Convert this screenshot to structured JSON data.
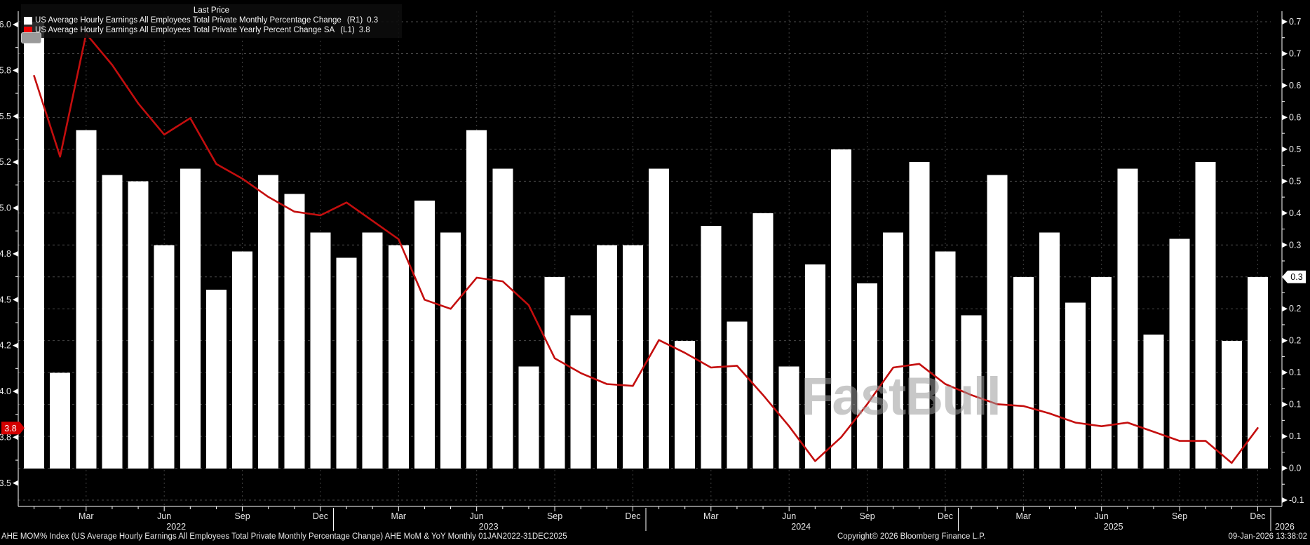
{
  "legend": {
    "title": "Last Price",
    "series": [
      {
        "swatch": "#ffffff",
        "label": "US Average Hourly Earnings All Employees Total Private Monthly Percentage Change",
        "axis_tag": "(R1)",
        "value": "0.3"
      },
      {
        "swatch": "#ee0000",
        "label": "US Average Hourly Earnings All Employees Total Private Yearly Percent Change SA",
        "axis_tag": "(L1)",
        "value": "3.8"
      }
    ]
  },
  "left_axis": {
    "ticks": [
      {
        "value": 6.0,
        "label": "6.0"
      },
      {
        "value": 5.75,
        "label": "5.8"
      },
      {
        "value": 5.5,
        "label": "5.5"
      },
      {
        "value": 5.25,
        "label": "5.2"
      },
      {
        "value": 5.0,
        "label": "5.0"
      },
      {
        "value": 4.75,
        "label": "4.8"
      },
      {
        "value": 4.5,
        "label": "4.5"
      },
      {
        "value": 4.25,
        "label": "4.2"
      },
      {
        "value": 4.0,
        "label": "4.0"
      },
      {
        "value": 3.75,
        "label": "3.8"
      },
      {
        "value": 3.5,
        "label": "3.5"
      }
    ],
    "last_badge": {
      "label": "3.8",
      "value": 3.8
    }
  },
  "right_axis": {
    "tick_labels": [
      "0.7",
      "0.7",
      "0.6",
      "0.6",
      "0.5",
      "0.5",
      "0.4",
      "0.3",
      "0.3",
      "0.2",
      "0.2",
      "0.1",
      "0.1",
      "0.1",
      "0.0",
      "-0.1"
    ],
    "badge_index": 8,
    "last_badge": {
      "label": "0.3",
      "value": 0.3
    }
  },
  "x_axis": {
    "month_ticks": [
      {
        "index": 2,
        "label": "Mar"
      },
      {
        "index": 5,
        "label": "Jun"
      },
      {
        "index": 8,
        "label": "Sep"
      },
      {
        "index": 11,
        "label": "Dec"
      },
      {
        "index": 14,
        "label": "Mar"
      },
      {
        "index": 17,
        "label": "Jun"
      },
      {
        "index": 20,
        "label": "Sep"
      },
      {
        "index": 23,
        "label": "Dec"
      },
      {
        "index": 26,
        "label": "Mar"
      },
      {
        "index": 29,
        "label": "Jun"
      },
      {
        "index": 32,
        "label": "Sep"
      },
      {
        "index": 35,
        "label": "Dec"
      },
      {
        "index": 38,
        "label": "Mar"
      },
      {
        "index": 41,
        "label": "Jun"
      },
      {
        "index": 44,
        "label": "Sep"
      },
      {
        "index": 47,
        "label": "Dec"
      }
    ],
    "year_labels": [
      {
        "index": 5,
        "label": "2022"
      },
      {
        "index": 17,
        "label": "2023"
      },
      {
        "index": 29,
        "label": "2024"
      },
      {
        "index": 41,
        "label": "2025"
      }
    ],
    "right_edge_year": "2026"
  },
  "chart_data": {
    "type": "bar+line",
    "title": "Last Price",
    "categories": [
      "Jan 2022",
      "Feb 2022",
      "Mar 2022",
      "Apr 2022",
      "May 2022",
      "Jun 2022",
      "Jul 2022",
      "Aug 2022",
      "Sep 2022",
      "Oct 2022",
      "Nov 2022",
      "Dec 2022",
      "Jan 2023",
      "Feb 2023",
      "Mar 2023",
      "Apr 2023",
      "May 2023",
      "Jun 2023",
      "Jul 2023",
      "Aug 2023",
      "Sep 2023",
      "Oct 2023",
      "Nov 2023",
      "Dec 2023",
      "Jan 2024",
      "Feb 2024",
      "Mar 2024",
      "Apr 2024",
      "May 2024",
      "Jun 2024",
      "Jul 2024",
      "Aug 2024",
      "Sep 2024",
      "Oct 2024",
      "Nov 2024",
      "Dec 2024",
      "Jan 2025",
      "Feb 2025",
      "Mar 2025",
      "Apr 2025",
      "May 2025",
      "Jun 2025",
      "Jul 2025",
      "Aug 2025",
      "Sep 2025",
      "Oct 2025",
      "Nov 2025",
      "Dec 2025"
    ],
    "series": [
      {
        "name": "US Average Hourly Earnings All Employees Total Private Monthly Percentage Change",
        "type": "bar",
        "axis": "R1",
        "last_value": 0.3,
        "values": [
          0.7,
          0.15,
          0.53,
          0.46,
          0.45,
          0.35,
          0.47,
          0.28,
          0.34,
          0.46,
          0.43,
          0.37,
          0.33,
          0.37,
          0.35,
          0.42,
          0.37,
          0.53,
          0.47,
          0.16,
          0.3,
          0.24,
          0.35,
          0.35,
          0.47,
          0.2,
          0.38,
          0.23,
          0.4,
          0.16,
          0.32,
          0.5,
          0.29,
          0.37,
          0.48,
          0.34,
          0.24,
          0.46,
          0.3,
          0.37,
          0.26,
          0.3,
          0.47,
          0.21,
          0.36,
          0.48,
          0.2,
          0.3
        ]
      },
      {
        "name": "US Average Hourly Earnings All Employees Total Private Yearly Percent Change SA",
        "type": "line",
        "axis": "L1",
        "last_value": 3.8,
        "values": [
          5.72,
          5.28,
          5.95,
          5.78,
          5.57,
          5.4,
          5.49,
          5.24,
          5.16,
          5.06,
          4.98,
          4.96,
          5.03,
          4.93,
          4.83,
          4.5,
          4.45,
          4.62,
          4.6,
          4.47,
          4.18,
          4.1,
          4.04,
          4.03,
          4.28,
          4.21,
          4.13,
          4.14,
          3.98,
          3.81,
          3.62,
          3.75,
          3.93,
          4.13,
          4.15,
          4.04,
          3.98,
          3.93,
          3.92,
          3.88,
          3.83,
          3.81,
          3.83,
          3.78,
          3.73,
          3.73,
          3.61,
          3.8
        ]
      }
    ],
    "left_axis_range": [
      3.4,
      6.1
    ],
    "right_axis_range": [
      -0.12,
      0.72
    ],
    "x_range": "01JAN2022-31DEC2025",
    "grid": "dashed"
  },
  "watermark": {
    "text": "FastBull"
  },
  "footer": {
    "left": "AHE MOM% Index (US Average Hourly Earnings All Employees Total Private Monthly Percentage Change) AHE MoM & YoY Monthly 01JAN2022-31DEC2025",
    "copyright": "Copyright© 2026 Bloomberg Finance L.P.",
    "timestamp": "09-Jan-2026 13:38:02"
  },
  "colors": {
    "background": "#000000",
    "bar": "#ffffff",
    "line": "#c40e0e",
    "grid_h": "#4a4a4a",
    "grid_v": "#404040",
    "axis": "#ffffff",
    "text": "#e8e8e8",
    "badge_left_bg": "#d40000",
    "badge_left_text": "#ffffff",
    "badge_right_bg": "#ffffff",
    "badge_right_text": "#000000"
  }
}
